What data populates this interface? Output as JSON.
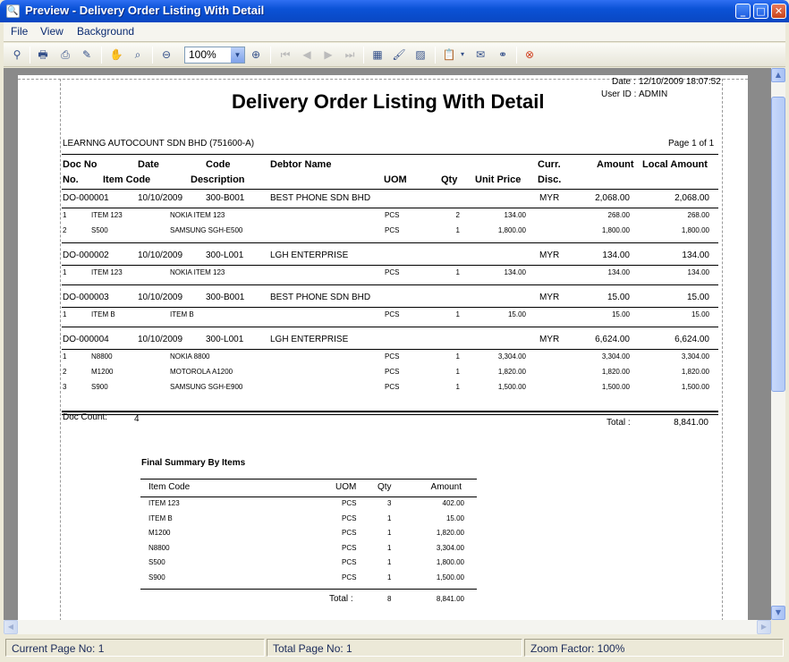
{
  "window": {
    "title": "Preview - Delivery Order Listing With Detail",
    "min": "_",
    "max": "□",
    "close": "✕"
  },
  "menu": {
    "file": "File",
    "view": "View",
    "background": "Background"
  },
  "toolbar": {
    "zoom_value": "100%"
  },
  "report": {
    "date_label": "Date :",
    "date_value": "12/10/2009 18:07:52",
    "user_label": "User ID :",
    "user_value": "ADMIN",
    "title": "Delivery Order Listing With Detail",
    "company": "LEARNNG AUTOCOUNT SDN BHD (751600-A)",
    "page_info": "Page 1 of 1",
    "headers": {
      "doc_no": "Doc No",
      "date": "Date",
      "code": "Code",
      "debtor_name": "Debtor Name",
      "curr": "Curr.",
      "amount": "Amount",
      "local_amount": "Local Amount",
      "no": "No.",
      "item_code": "Item Code",
      "description": "Description",
      "uom": "UOM",
      "qty": "Qty",
      "unit_price": "Unit Price",
      "disc": "Disc."
    },
    "docs": [
      {
        "doc_no": "DO-000001",
        "date": "10/10/2009",
        "code": "300-B001",
        "debtor": "BEST PHONE SDN BHD",
        "curr": "MYR",
        "amount": "2,068.00",
        "local": "2,068.00",
        "lines": [
          {
            "no": "1",
            "item": "ITEM 123",
            "desc": "NOKIA ITEM 123",
            "uom": "PCS",
            "qty": "2",
            "price": "134.00",
            "amount": "268.00",
            "local": "268.00"
          },
          {
            "no": "2",
            "item": "S500",
            "desc": "SAMSUNG SGH-E500",
            "uom": "PCS",
            "qty": "1",
            "price": "1,800.00",
            "amount": "1,800.00",
            "local": "1,800.00"
          }
        ]
      },
      {
        "doc_no": "DO-000002",
        "date": "10/10/2009",
        "code": "300-L001",
        "debtor": "LGH ENTERPRISE",
        "curr": "MYR",
        "amount": "134.00",
        "local": "134.00",
        "lines": [
          {
            "no": "1",
            "item": "ITEM 123",
            "desc": "NOKIA ITEM 123",
            "uom": "PCS",
            "qty": "1",
            "price": "134.00",
            "amount": "134.00",
            "local": "134.00"
          }
        ]
      },
      {
        "doc_no": "DO-000003",
        "date": "10/10/2009",
        "code": "300-B001",
        "debtor": "BEST PHONE SDN BHD",
        "curr": "MYR",
        "amount": "15.00",
        "local": "15.00",
        "lines": [
          {
            "no": "1",
            "item": "ITEM B",
            "desc": "ITEM B",
            "uom": "PCS",
            "qty": "1",
            "price": "15.00",
            "amount": "15.00",
            "local": "15.00"
          }
        ]
      },
      {
        "doc_no": "DO-000004",
        "date": "10/10/2009",
        "code": "300-L001",
        "debtor": "LGH ENTERPRISE",
        "curr": "MYR",
        "amount": "6,624.00",
        "local": "6,624.00",
        "lines": [
          {
            "no": "1",
            "item": "N8800",
            "desc": "NOKIA 8800",
            "uom": "PCS",
            "qty": "1",
            "price": "3,304.00",
            "amount": "3,304.00",
            "local": "3,304.00"
          },
          {
            "no": "2",
            "item": "M1200",
            "desc": "MOTOROLA A1200",
            "uom": "PCS",
            "qty": "1",
            "price": "1,820.00",
            "amount": "1,820.00",
            "local": "1,820.00"
          },
          {
            "no": "3",
            "item": "S900",
            "desc": "SAMSUNG SGH-E900",
            "uom": "PCS",
            "qty": "1",
            "price": "1,500.00",
            "amount": "1,500.00",
            "local": "1,500.00"
          }
        ]
      }
    ],
    "doc_count_label": "Doc Count:",
    "doc_count": "4",
    "total_label": "Total :",
    "total": "8,841.00",
    "summary": {
      "title": "Final Summary By Items",
      "headers": {
        "item_code": "Item Code",
        "uom": "UOM",
        "qty": "Qty",
        "amount": "Amount"
      },
      "rows": [
        {
          "item": "ITEM 123",
          "uom": "PCS",
          "qty": "3",
          "amount": "402.00"
        },
        {
          "item": "ITEM B",
          "uom": "PCS",
          "qty": "1",
          "amount": "15.00"
        },
        {
          "item": "M1200",
          "uom": "PCS",
          "qty": "1",
          "amount": "1,820.00"
        },
        {
          "item": "N8800",
          "uom": "PCS",
          "qty": "1",
          "amount": "3,304.00"
        },
        {
          "item": "S500",
          "uom": "PCS",
          "qty": "1",
          "amount": "1,800.00"
        },
        {
          "item": "S900",
          "uom": "PCS",
          "qty": "1",
          "amount": "1,500.00"
        }
      ],
      "total_label": "Total :",
      "total_qty": "8",
      "total_amount": "8,841.00"
    }
  },
  "status": {
    "current_page": "Current Page No: 1",
    "total_page": "Total Page No: 1",
    "zoom": "Zoom Factor: 100%"
  }
}
